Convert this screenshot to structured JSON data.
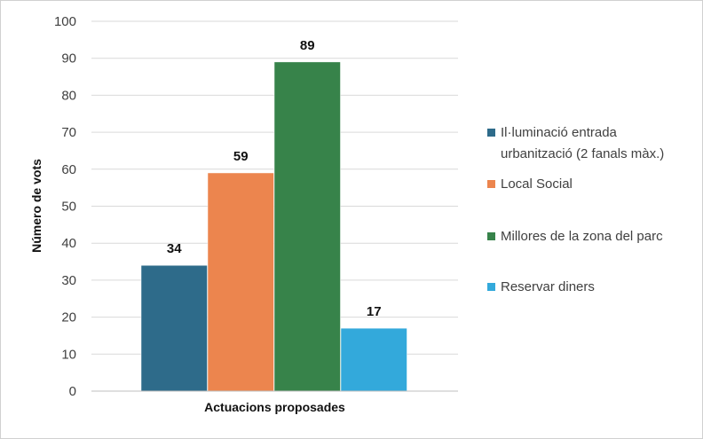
{
  "chart_data": {
    "type": "bar",
    "title": "",
    "xlabel": "Actuacions proposades",
    "ylabel": "Número de vots",
    "ylim": [
      0,
      100
    ],
    "yticks": [
      0,
      10,
      20,
      30,
      40,
      50,
      60,
      70,
      80,
      90,
      100
    ],
    "grid": true,
    "legend_position": "right",
    "series": [
      {
        "name": "Il·luminació entrada urbanització (2 fanals màx.)",
        "legend_lines": [
          "Il·luminació entrada",
          "urbanització (2 fanals màx.)"
        ],
        "value": 34,
        "color": "#2e6b8a"
      },
      {
        "name": "Local Social",
        "legend_lines": [
          "Local Social"
        ],
        "value": 59,
        "color": "#ec854e"
      },
      {
        "name": "Millores de la zona del parc",
        "legend_lines": [
          "Millores de la zona del parc"
        ],
        "value": 89,
        "color": "#37834a"
      },
      {
        "name": "Reservar diners",
        "legend_lines": [
          "Reservar diners"
        ],
        "value": 17,
        "color": "#33a9db"
      }
    ]
  }
}
